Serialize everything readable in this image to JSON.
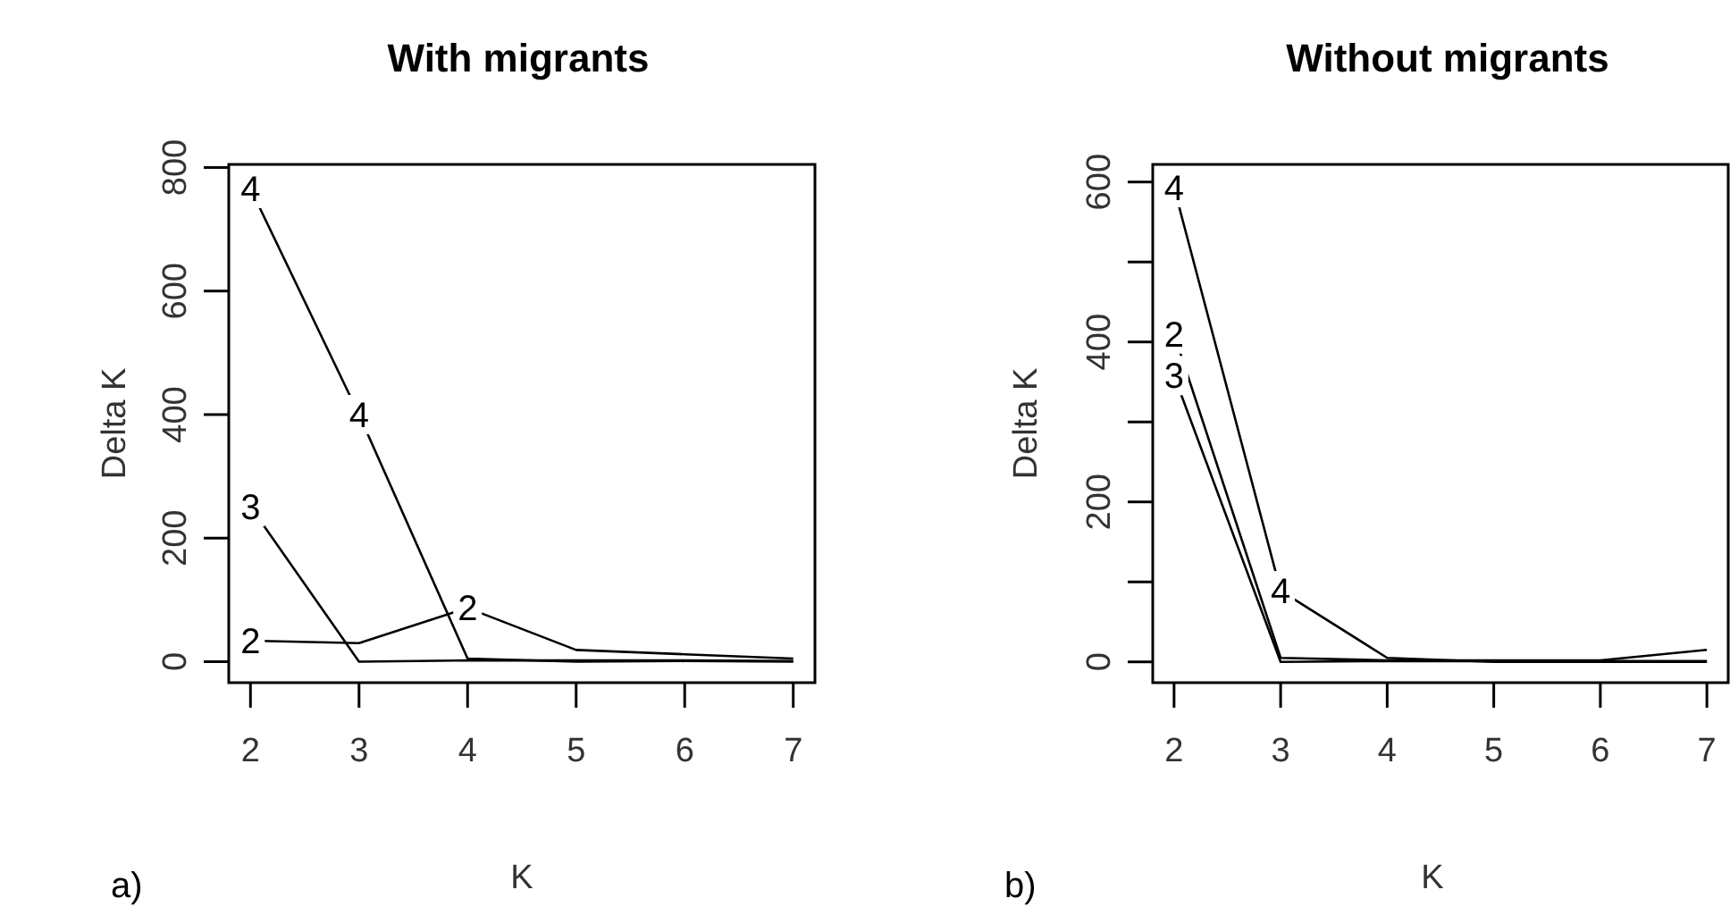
{
  "chart_data": [
    {
      "type": "line",
      "title": "With migrants",
      "xlabel": "K",
      "ylabel": "Delta K",
      "annotations": [
        "a)"
      ],
      "x": [
        2,
        3,
        4,
        5,
        6,
        7
      ],
      "xlim": [
        1.8,
        7.2
      ],
      "xticks": [
        2,
        3,
        4,
        5,
        6,
        7
      ],
      "ylim": [
        -34,
        805
      ],
      "yticks": [
        0,
        200,
        400,
        600,
        800
      ],
      "grid": false,
      "legend": false,
      "line_style": "solid",
      "series": [
        {
          "name": "2",
          "color": "#000000",
          "values": [
            34,
            30,
            87,
            19,
            12,
            5
          ]
        },
        {
          "name": "3",
          "color": "#000000",
          "values": [
            251,
            0,
            2,
            2,
            2,
            1
          ]
        },
        {
          "name": "4",
          "color": "#000000",
          "values": [
            766,
            400,
            5,
            0,
            1,
            0
          ]
        }
      ]
    },
    {
      "type": "line",
      "title": "Without migrants",
      "xlabel": "K",
      "ylabel": "Delta K",
      "annotations": [
        "b)"
      ],
      "x": [
        2,
        3,
        4,
        5,
        6,
        7
      ],
      "xlim": [
        1.8,
        7.2
      ],
      "xticks": [
        2,
        3,
        4,
        5,
        6,
        7
      ],
      "ylim": [
        -26,
        622
      ],
      "yticks": [
        0,
        {
          "value": 100,
          "label": null
        },
        200,
        {
          "value": 300,
          "label": null
        },
        400,
        {
          "value": 500,
          "label": null
        },
        600
      ],
      "grid": false,
      "legend": false,
      "line_style": "solid",
      "series": [
        {
          "name": "2",
          "color": "#000000",
          "values": [
            410,
            5,
            2,
            2,
            2,
            15
          ]
        },
        {
          "name": "3",
          "color": "#000000",
          "values": [
            358,
            0,
            1,
            1,
            1,
            1
          ]
        },
        {
          "name": "4",
          "color": "#000000",
          "values": [
            593,
            89,
            5,
            0,
            0,
            0
          ]
        }
      ]
    }
  ]
}
